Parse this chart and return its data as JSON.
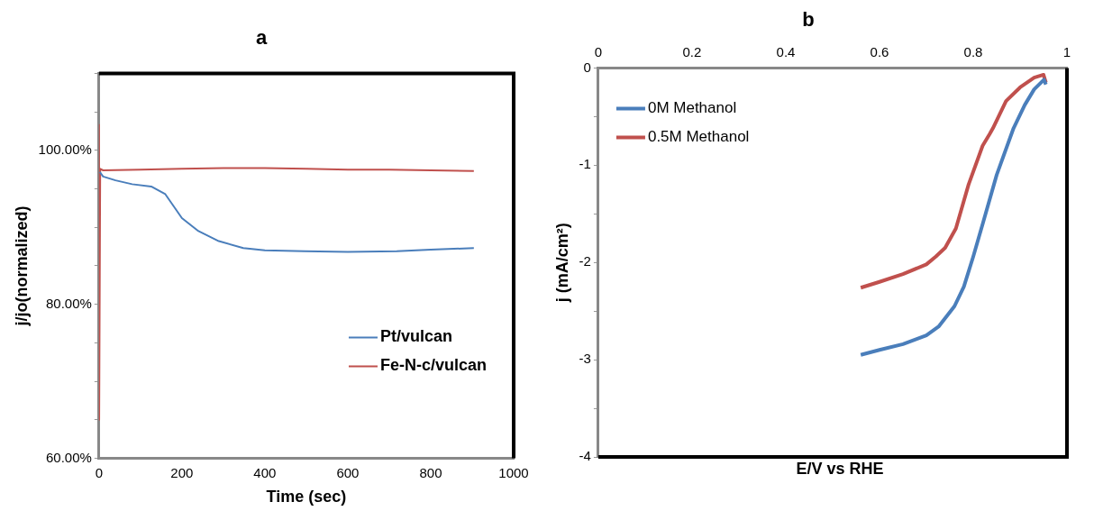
{
  "chart_data": [
    {
      "type": "line",
      "title": "a",
      "xlabel": "Time (sec)",
      "ylabel": "j/jo(normalized)",
      "xlim": [
        0,
        1000
      ],
      "xticks": [
        0,
        200,
        400,
        600,
        800,
        1000
      ],
      "ylim": [
        60,
        110
      ],
      "yticks": [
        {
          "value": 60,
          "label": "60.00%"
        },
        {
          "value": 80,
          "label": "80.00%"
        },
        {
          "value": 100,
          "label": "100.00%"
        }
      ],
      "grid": false,
      "legend": "bottom right",
      "marker": "none",
      "line_style": "solid",
      "series": [
        {
          "name": "Pt/vulcan",
          "color": "#4a7ebb",
          "x": [
            2,
            10,
            40,
            80,
            126,
            160,
            200,
            240,
            289,
            348,
            400,
            496,
            600,
            718,
            800,
            904
          ],
          "values": [
            97.2,
            96.6,
            96.1,
            95.6,
            95.3,
            94.3,
            91.2,
            89.5,
            88.2,
            87.3,
            87.0,
            86.9,
            86.8,
            86.9,
            87.1,
            87.3
          ]
        },
        {
          "name": "Fe-N-c/vulcan",
          "color": "#c0504d",
          "x": [
            0,
            0.5,
            3,
            10,
            100,
            200,
            300,
            400,
            500,
            600,
            700,
            800,
            904
          ],
          "values": [
            103.4,
            65,
            97.6,
            97.4,
            97.5,
            97.6,
            97.7,
            97.7,
            97.6,
            97.5,
            97.5,
            97.4,
            97.3
          ]
        }
      ]
    },
    {
      "type": "line",
      "title": "b",
      "xlabel": "E/V vs RHE",
      "ylabel": "j (mA/cm²)",
      "xlim": [
        0,
        1
      ],
      "xticks": [
        0,
        0.2,
        0.4,
        0.6,
        0.8,
        1
      ],
      "ylim": [
        -4,
        0
      ],
      "yticks": [
        0,
        -1,
        -2,
        -3,
        -4
      ],
      "grid": false,
      "legend": "top left",
      "marker": "none",
      "line_style": "solid",
      "series": [
        {
          "name": "0M Methanol",
          "color": "#4a7ebb",
          "x": [
            0.56,
            0.6,
            0.65,
            0.7,
            0.726,
            0.76,
            0.78,
            0.8,
            0.821,
            0.85,
            0.886,
            0.91,
            0.93,
            0.951,
            0.955
          ],
          "values": [
            -2.95,
            -2.9,
            -2.84,
            -2.75,
            -2.66,
            -2.45,
            -2.25,
            -1.94,
            -1.59,
            -1.1,
            -0.62,
            -0.38,
            -0.22,
            -0.12,
            -0.17
          ]
        },
        {
          "name": "0.5M Methanol",
          "color": "#c0504d",
          "x": [
            0.56,
            0.6,
            0.65,
            0.7,
            0.72,
            0.74,
            0.763,
            0.79,
            0.82,
            0.835,
            0.842,
            0.87,
            0.9,
            0.93,
            0.95,
            0.955
          ],
          "values": [
            -2.26,
            -2.2,
            -2.12,
            -2.02,
            -1.94,
            -1.85,
            -1.65,
            -1.2,
            -0.8,
            -0.68,
            -0.62,
            -0.34,
            -0.2,
            -0.1,
            -0.07,
            -0.15
          ]
        }
      ]
    }
  ]
}
